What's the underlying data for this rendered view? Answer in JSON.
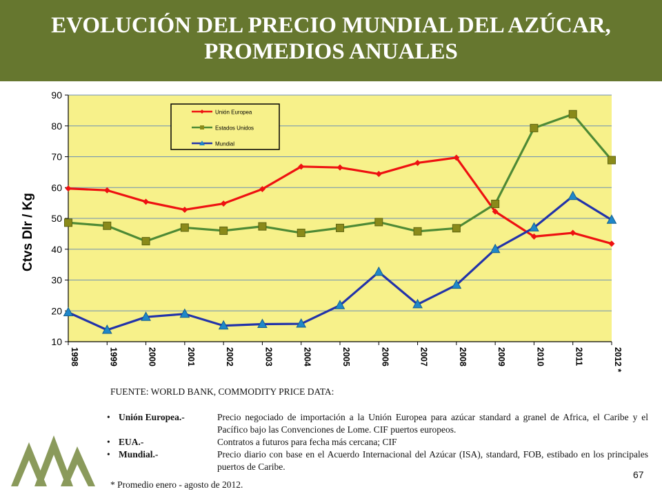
{
  "header": {
    "title_line1": "EVOLUCIÓN DEL PRECIO MUNDIAL DEL AZÚCAR,",
    "title_line2": "PROMEDIOS ANUALES"
  },
  "chart_data": {
    "type": "line",
    "ylabel": "Ctvs Dlr / Kg",
    "ylim": [
      10,
      90
    ],
    "yticks": [
      10,
      20,
      30,
      40,
      50,
      60,
      70,
      80,
      90
    ],
    "categories": [
      "1998",
      "1999",
      "2000",
      "2001",
      "2002",
      "2003",
      "2004",
      "2005",
      "2006",
      "2007",
      "2008",
      "2009",
      "2010",
      "2011",
      "2012 *"
    ],
    "series": [
      {
        "name": "Unión Europea",
        "color": "#ee1111",
        "marker": "diamond",
        "values": [
          59.7,
          59.1,
          55.4,
          52.8,
          54.8,
          59.5,
          66.8,
          66.5,
          64.4,
          68.0,
          69.7,
          52.2,
          44.1,
          45.3,
          41.8
        ]
      },
      {
        "name": "Estados Unidos",
        "color": "#4e8a35",
        "marker": "square",
        "values": [
          48.6,
          47.6,
          42.6,
          47.0,
          46.0,
          47.4,
          45.3,
          46.9,
          48.8,
          45.8,
          46.8,
          54.7,
          79.3,
          83.8,
          68.9
        ]
      },
      {
        "name": "Mundial",
        "color": "#2233aa",
        "marker": "triangle",
        "values": [
          19.5,
          13.8,
          18.0,
          19.0,
          15.2,
          15.7,
          15.8,
          21.8,
          32.6,
          22.1,
          28.4,
          40.0,
          47.0,
          57.2,
          49.5
        ]
      }
    ],
    "plot_background": "#f7f18a",
    "grid": true,
    "legend_position": "top-left"
  },
  "source_text": "FUENTE: WORLD BANK, COMMODITY PRICE DATA:",
  "notes": [
    {
      "bullet": "•",
      "key": "Unión Europea.-",
      "text": "Precio negociado de importación a la Unión Europea para azúcar standard a granel de Africa, el Caribe y el Pacífico bajo las Convenciones de Lome. CIF puertos europeos."
    },
    {
      "bullet": "•",
      "key": "EUA.-",
      "text": "Contratos a futuros para fecha más cercana; CIF"
    },
    {
      "bullet": "•",
      "key": "Mundial.-",
      "text": "Precio diario con base en el Acuerdo Internacional del Azúcar (ISA), standard, FOB, estibado en los principales puertos de Caribe."
    }
  ],
  "footnote": "* Promedio enero - agosto de 2012.",
  "page_number": "67",
  "colors": {
    "header_bg": "#66772f",
    "logo": "#8a9a5b"
  }
}
